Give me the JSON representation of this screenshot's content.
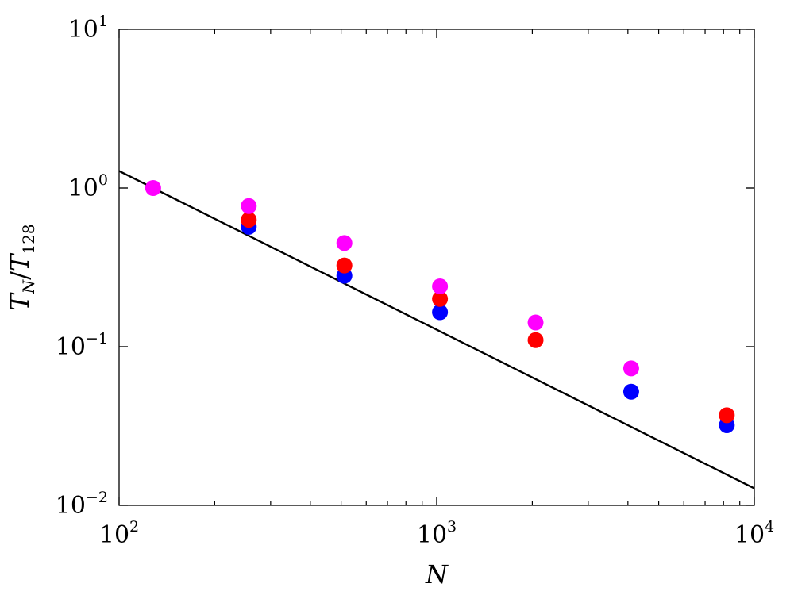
{
  "chart_data": {
    "type": "scatter",
    "x_scale": "log",
    "y_scale": "log",
    "xlim": [
      100,
      10000
    ],
    "ylim": [
      0.01,
      10
    ],
    "grid": false,
    "title": "",
    "xlabel": "N",
    "ylabel": {
      "main": "T",
      "sub1": "N",
      "sep": "/",
      "main2": "T",
      "sub2": "128"
    },
    "x_ticks": [
      {
        "value": 100,
        "base": "10",
        "exp": "2"
      },
      {
        "value": 1000,
        "base": "10",
        "exp": "3"
      },
      {
        "value": 10000,
        "base": "10",
        "exp": "4"
      }
    ],
    "y_ticks": [
      {
        "value": 0.01,
        "base": "10",
        "exp": "−2"
      },
      {
        "value": 0.1,
        "base": "10",
        "exp": "−1"
      },
      {
        "value": 1,
        "base": "10",
        "exp": "0"
      },
      {
        "value": 10,
        "base": "10",
        "exp": "1"
      }
    ],
    "series": [
      {
        "color": "#0000ff",
        "points": [
          [
            256,
            0.57
          ],
          [
            512,
            0.28
          ],
          [
            1024,
            0.165
          ],
          [
            4096,
            0.052
          ],
          [
            8192,
            0.032
          ]
        ]
      },
      {
        "color": "#ff0000",
        "points": [
          [
            256,
            0.63
          ],
          [
            512,
            0.325
          ],
          [
            1024,
            0.2
          ],
          [
            2048,
            0.11
          ],
          [
            8192,
            0.037
          ]
        ]
      },
      {
        "color": "#ff00ff",
        "points": [
          [
            128,
            1.0
          ],
          [
            256,
            0.77
          ],
          [
            512,
            0.45
          ],
          [
            1024,
            0.24
          ],
          [
            2048,
            0.142
          ],
          [
            4096,
            0.073
          ]
        ]
      }
    ],
    "reference_line": {
      "color": "#000000",
      "points": [
        [
          100,
          1.28
        ],
        [
          10000,
          0.0128
        ]
      ]
    }
  }
}
